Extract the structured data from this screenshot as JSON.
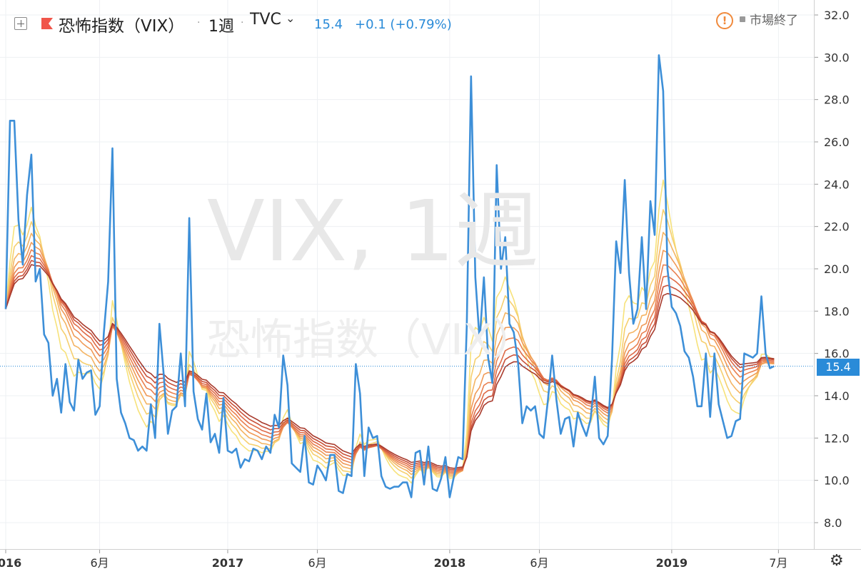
{
  "header": {
    "symbol_title": "恐怖指数（VIX）",
    "separator": "·",
    "interval": "1週",
    "exchange": "TVC",
    "chevron": "⌄",
    "last_price": "15.4",
    "change": "+0.1 (+0.79%)",
    "market_status": "市場終了"
  },
  "watermark": {
    "line1": "VIX, 1週",
    "line2": "恐怖指数（VIX）"
  },
  "colors": {
    "price_line": "#3d8fd8",
    "ribbon": [
      "#f7e27a",
      "#f6cf6e",
      "#f4b463",
      "#f09a57",
      "#e98050",
      "#df6b47",
      "#c9513a",
      "#a83a2c"
    ],
    "price_tag": "#2a8bd8",
    "warning": "#f08a3c"
  },
  "icons": {
    "add": "plus-square-icon",
    "flag": "flag-icon",
    "warning": "warning-icon",
    "settings": "gear-icon"
  },
  "chart_data": {
    "type": "line",
    "title": "恐怖指数（VIX）",
    "ylim": [
      7,
      33
    ],
    "y_ticks": [
      8.0,
      10.0,
      12.0,
      14.0,
      16.0,
      18.0,
      20.0,
      22.0,
      24.0,
      26.0,
      28.0,
      30.0,
      32.0
    ],
    "x_ticks": [
      {
        "t": 0,
        "label": "2016"
      },
      {
        "t": 22,
        "label": "6月"
      },
      {
        "t": 52,
        "label": "2017"
      },
      {
        "t": 73,
        "label": "6月"
      },
      {
        "t": 104,
        "label": "2018"
      },
      {
        "t": 125,
        "label": "6月"
      },
      {
        "t": 156,
        "label": "2019"
      },
      {
        "t": 181,
        "label": "7月"
      }
    ],
    "last_value": 15.4,
    "series": [
      {
        "name": "VIX",
        "values": [
          18.1,
          27.0,
          27.0,
          22.3,
          20.2,
          23.5,
          25.4,
          19.4,
          20.0,
          16.9,
          16.5,
          14.0,
          14.8,
          13.2,
          15.5,
          13.7,
          13.3,
          15.7,
          14.8,
          15.1,
          15.2,
          13.1,
          13.5,
          17.0,
          19.4,
          25.7,
          14.8,
          13.2,
          12.7,
          12.0,
          11.9,
          11.4,
          11.6,
          11.4,
          13.6,
          12.0,
          17.4,
          15.0,
          12.2,
          13.3,
          13.5,
          16.0,
          13.5,
          22.4,
          14.2,
          12.9,
          12.4,
          14.1,
          11.8,
          12.2,
          11.3,
          13.9,
          11.4,
          11.3,
          11.5,
          10.6,
          11.0,
          10.9,
          11.5,
          11.4,
          11.0,
          11.6,
          11.3,
          13.1,
          12.5,
          15.9,
          14.5,
          10.8,
          10.6,
          10.4,
          12.1,
          9.9,
          9.8,
          10.7,
          10.4,
          10.0,
          11.2,
          11.2,
          9.5,
          9.4,
          10.3,
          10.2,
          15.5,
          14.1,
          10.2,
          12.5,
          12.0,
          12.1,
          10.2,
          9.7,
          9.6,
          9.7,
          9.7,
          9.9,
          9.9,
          9.2,
          11.3,
          11.4,
          9.8,
          11.6,
          9.6,
          9.5,
          10.1,
          11.1,
          9.2,
          10.2,
          11.1,
          11.0,
          17.3,
          29.1,
          19.6,
          16.6,
          19.6,
          15.8,
          14.6,
          24.9,
          20.0,
          21.5,
          17.4,
          17.0,
          15.6,
          12.7,
          13.5,
          13.3,
          13.5,
          12.2,
          12.0,
          13.8,
          15.9,
          13.8,
          12.2,
          12.9,
          13.0,
          11.6,
          13.2,
          12.6,
          12.1,
          12.9,
          14.9,
          12.0,
          11.7,
          12.1,
          15.7,
          21.3,
          19.8,
          24.2,
          19.8,
          17.4,
          18.1,
          21.5,
          18.1,
          23.2,
          21.6,
          30.1,
          28.4,
          20.0,
          18.2,
          17.9,
          17.3,
          16.1,
          15.8,
          14.9,
          13.5,
          13.5,
          16.0,
          13.0,
          16.0,
          13.6,
          12.8,
          12.0,
          12.1,
          12.8,
          12.9,
          16.0,
          15.9,
          15.8,
          16.0,
          18.7,
          16.0,
          15.3,
          15.4
        ]
      }
    ],
    "ribbon_lengths": [
      7,
      10,
      13,
      16,
      19,
      22,
      25,
      28
    ]
  }
}
